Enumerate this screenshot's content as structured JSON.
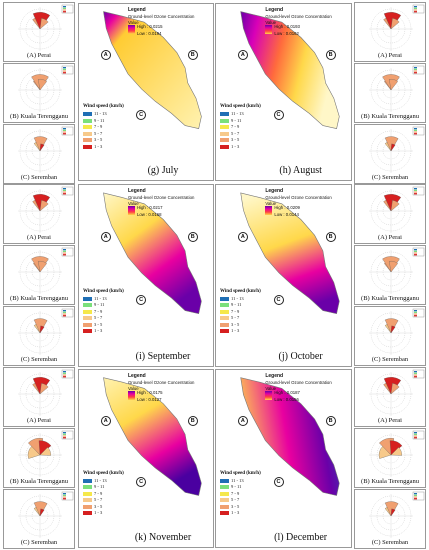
{
  "roses": {
    "left": [
      {
        "label": "(A) Perai",
        "shape": "a"
      },
      {
        "label": "(B) Kuala Terengganu",
        "shape": "b"
      },
      {
        "label": "(C) Seremban",
        "shape": "c"
      },
      {
        "label": "(A) Perai",
        "shape": "a"
      },
      {
        "label": "(B) Kuala Terengganu",
        "shape": "b"
      },
      {
        "label": "(C) Seremban",
        "shape": "c"
      },
      {
        "label": "(A) Perai",
        "shape": "a"
      },
      {
        "label": "(B) Kuala Terengganu",
        "shape": "d"
      },
      {
        "label": "(C) Seremban",
        "shape": "c"
      }
    ],
    "right": [
      {
        "label": "(A) Perai",
        "shape": "a"
      },
      {
        "label": "(B) Kuala Terengganu",
        "shape": "b"
      },
      {
        "label": "(C) Seremban",
        "shape": "c"
      },
      {
        "label": "(A) Perai",
        "shape": "a"
      },
      {
        "label": "(B) Kuala Terengganu",
        "shape": "b"
      },
      {
        "label": "(C) Seremban",
        "shape": "c"
      },
      {
        "label": "(A) Perai",
        "shape": "a"
      },
      {
        "label": "(B) Kuala Terengganu",
        "shape": "d"
      },
      {
        "label": "(C) Seremban",
        "shape": "c"
      }
    ]
  },
  "maps": [
    {
      "caption": "(g) July",
      "high": "High : 0.0215",
      "low": "Low : 0.0194"
    },
    {
      "caption": "(h) August",
      "high": "High : 0.0193",
      "low": "Low : 0.0162"
    },
    {
      "caption": "(i) September",
      "high": "High : 0.0217",
      "low": "Low : 0.0168"
    },
    {
      "caption": "(j) October",
      "high": "High : 0.0209",
      "low": "Low : 0.0144"
    },
    {
      "caption": "(k) November",
      "high": "High : 0.0175",
      "low": "Low : 0.0127"
    },
    {
      "caption": "(l) December",
      "high": "High : 0.0187",
      "low": "Low : 0.0156"
    }
  ],
  "legend": {
    "title": "Legend",
    "subtitle": "Ground-level Ozone Concentration",
    "value_label": "Value"
  },
  "stations": [
    "A",
    "B",
    "C"
  ],
  "wind_legend": {
    "title": "Wind speed (km/h)",
    "items": [
      {
        "label": "11 - 13",
        "color": "#1f6fb5"
      },
      {
        "label": "9 - 11",
        "color": "#7be07b"
      },
      {
        "label": "7 - 9",
        "color": "#f5e84a"
      },
      {
        "label": "5 - 7",
        "color": "#f7c98a"
      },
      {
        "label": "3 - 5",
        "color": "#f0a070"
      },
      {
        "label": "1 - 3",
        "color": "#d62020"
      }
    ]
  }
}
